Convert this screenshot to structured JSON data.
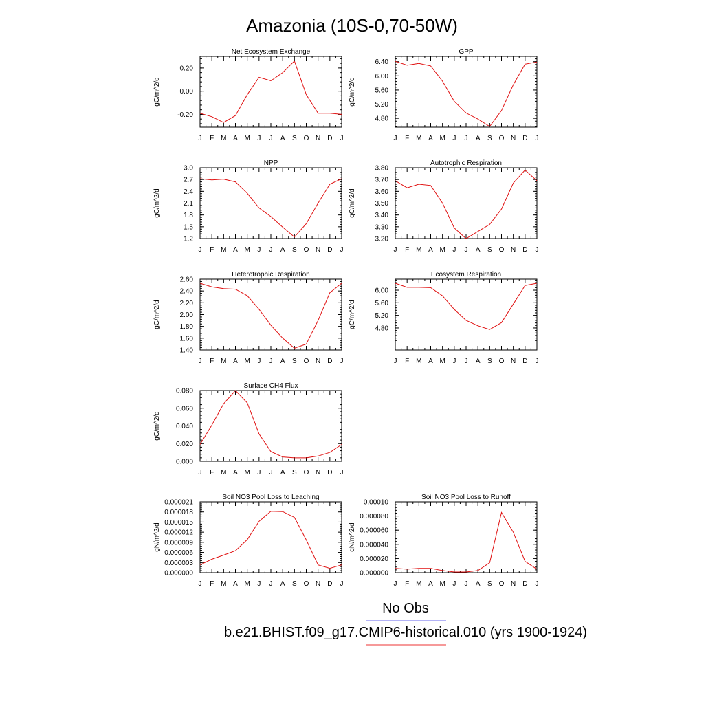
{
  "title": "Amazonia (10S-0,70-50W)",
  "legend": [
    {
      "label": "No Obs",
      "color": "#6666ee"
    },
    {
      "label": "b.e21.BHIST.f09_g17.CMIP6-historical.010 (yrs 1900-1924)",
      "color": "#ee3333"
    }
  ],
  "line_color": "#e01010",
  "chart_data": [
    {
      "type": "line",
      "title": "Net Ecosystem Exchange",
      "ylabel": "gC/m^2/d",
      "categories": [
        "J",
        "F",
        "M",
        "A",
        "M",
        "J",
        "J",
        "A",
        "S",
        "O",
        "N",
        "D",
        "J"
      ],
      "yticks": [
        "0.20",
        "0.00",
        "-0.20"
      ],
      "ytick_values": [
        0.2,
        0.0,
        -0.2
      ],
      "ylim": [
        -0.31,
        0.3
      ],
      "values": [
        -0.19,
        -0.22,
        -0.27,
        -0.21,
        -0.03,
        0.12,
        0.09,
        0.16,
        0.26,
        -0.03,
        -0.19,
        -0.19,
        -0.2
      ]
    },
    {
      "type": "line",
      "title": "GPP",
      "ylabel": "gC/m^2/d",
      "categories": [
        "J",
        "F",
        "M",
        "A",
        "M",
        "J",
        "J",
        "A",
        "S",
        "O",
        "N",
        "D",
        "J"
      ],
      "yticks": [
        "6.40",
        "6.00",
        "5.60",
        "5.20",
        "4.80"
      ],
      "ytick_values": [
        6.4,
        6.0,
        5.6,
        5.2,
        4.8
      ],
      "ylim": [
        4.55,
        6.55
      ],
      "values": [
        6.41,
        6.3,
        6.35,
        6.28,
        5.85,
        5.28,
        4.95,
        4.78,
        4.57,
        5.02,
        5.75,
        6.33,
        6.39
      ]
    },
    {
      "type": "line",
      "title": "NPP",
      "ylabel": "gC/m^2/d",
      "categories": [
        "J",
        "F",
        "M",
        "A",
        "M",
        "J",
        "J",
        "A",
        "S",
        "O",
        "N",
        "D",
        "J"
      ],
      "yticks": [
        "3.0",
        "2.7",
        "2.4",
        "2.1",
        "1.8",
        "1.5",
        "1.2"
      ],
      "ytick_values": [
        3.0,
        2.7,
        2.4,
        2.1,
        1.8,
        1.5,
        1.2
      ],
      "ylim": [
        1.2,
        3.0
      ],
      "values": [
        2.72,
        2.69,
        2.71,
        2.64,
        2.35,
        1.98,
        1.76,
        1.49,
        1.24,
        1.58,
        2.1,
        2.58,
        2.72
      ]
    },
    {
      "type": "line",
      "title": "Autotrophic Respiration",
      "ylabel": "gC/m^2/d",
      "categories": [
        "J",
        "F",
        "M",
        "A",
        "M",
        "J",
        "J",
        "A",
        "S",
        "O",
        "N",
        "D",
        "J"
      ],
      "yticks": [
        "3.80",
        "3.70",
        "3.60",
        "3.50",
        "3.40",
        "3.30",
        "3.20"
      ],
      "ytick_values": [
        3.8,
        3.7,
        3.6,
        3.5,
        3.4,
        3.3,
        3.2
      ],
      "ylim": [
        3.2,
        3.8
      ],
      "values": [
        3.69,
        3.63,
        3.66,
        3.65,
        3.5,
        3.29,
        3.2,
        3.26,
        3.32,
        3.45,
        3.67,
        3.78,
        3.69
      ]
    },
    {
      "type": "line",
      "title": "Heterotrophic Respiration",
      "ylabel": "gC/m^2/d",
      "categories": [
        "J",
        "F",
        "M",
        "A",
        "M",
        "J",
        "J",
        "A",
        "S",
        "O",
        "N",
        "D",
        "J"
      ],
      "yticks": [
        "2.60",
        "2.40",
        "2.20",
        "2.00",
        "1.80",
        "1.60",
        "1.40"
      ],
      "ytick_values": [
        2.6,
        2.4,
        2.2,
        2.0,
        1.8,
        1.6,
        1.4
      ],
      "ylim": [
        1.4,
        2.6
      ],
      "values": [
        2.53,
        2.47,
        2.44,
        2.43,
        2.32,
        2.09,
        1.82,
        1.6,
        1.43,
        1.5,
        1.9,
        2.37,
        2.53
      ]
    },
    {
      "type": "line",
      "title": "Ecosystem Respiration",
      "ylabel": "gC/m^2/d",
      "categories": [
        "J",
        "F",
        "M",
        "A",
        "M",
        "J",
        "J",
        "A",
        "S",
        "O",
        "N",
        "D",
        "J"
      ],
      "yticks": [
        "6.00",
        "5.60",
        "5.20",
        "4.80"
      ],
      "ytick_values": [
        6.0,
        5.6,
        5.2,
        4.8
      ],
      "ylim": [
        4.1,
        6.35
      ],
      "values": [
        6.22,
        6.09,
        6.09,
        6.08,
        5.82,
        5.39,
        5.04,
        4.87,
        4.75,
        4.97,
        5.56,
        6.15,
        6.22
      ]
    },
    {
      "type": "line",
      "title": "Surface CH4 Flux",
      "ylabel": "gC/m^2/d",
      "categories": [
        "J",
        "F",
        "M",
        "A",
        "M",
        "J",
        "J",
        "A",
        "S",
        "O",
        "N",
        "D",
        "J"
      ],
      "yticks": [
        "0.080",
        "0.060",
        "0.040",
        "0.020",
        "0.000"
      ],
      "ytick_values": [
        0.08,
        0.06,
        0.04,
        0.02,
        0.0
      ],
      "ylim": [
        0.0,
        0.08
      ],
      "values": [
        0.019,
        0.041,
        0.065,
        0.08,
        0.066,
        0.031,
        0.011,
        0.005,
        0.004,
        0.004,
        0.006,
        0.01,
        0.019
      ]
    },
    {
      "type": "line",
      "title": "Soil NO3 Pool Loss to Leaching",
      "ylabel": "gN/m^2/d",
      "categories": [
        "J",
        "F",
        "M",
        "A",
        "M",
        "J",
        "J",
        "A",
        "S",
        "O",
        "N",
        "D",
        "J"
      ],
      "yticks": [
        "0.000021",
        "0.000018",
        "0.000015",
        "0.000012",
        "0.000009",
        "0.000006",
        "0.000003",
        "0.000000"
      ],
      "ytick_values": [
        2.1e-05,
        1.8e-05,
        1.5e-05,
        1.2e-05,
        9e-06,
        6e-06,
        3e-06,
        0.0
      ],
      "ylim": [
        0.0,
        2.1e-05
      ],
      "values": [
        2.3e-06,
        4e-06,
        5.2e-06,
        6.5e-06,
        9.8e-06,
        1.52e-05,
        1.82e-05,
        1.81e-05,
        1.64e-05,
        9.7e-06,
        2.3e-06,
        1.3e-06,
        2.3e-06
      ]
    },
    {
      "type": "line",
      "title": "Soil NO3 Pool Loss to Runoff",
      "ylabel": "gN/m^2/d",
      "categories": [
        "J",
        "F",
        "M",
        "A",
        "M",
        "J",
        "J",
        "A",
        "S",
        "O",
        "N",
        "D",
        "J"
      ],
      "yticks": [
        "0.00010",
        "0.000080",
        "0.000060",
        "0.000040",
        "0.000020",
        "0.000000"
      ],
      "ytick_values": [
        0.0001,
        8e-05,
        6e-05,
        4e-05,
        2e-05,
        0.0
      ],
      "ylim": [
        0.0,
        0.0001
      ],
      "values": [
        6e-06,
        5e-06,
        6e-06,
        6e-06,
        3e-06,
        1e-06,
        1e-06,
        3e-06,
        1.4e-05,
        8.5e-05,
        5.7e-05,
        1.6e-05,
        5e-06
      ]
    }
  ]
}
